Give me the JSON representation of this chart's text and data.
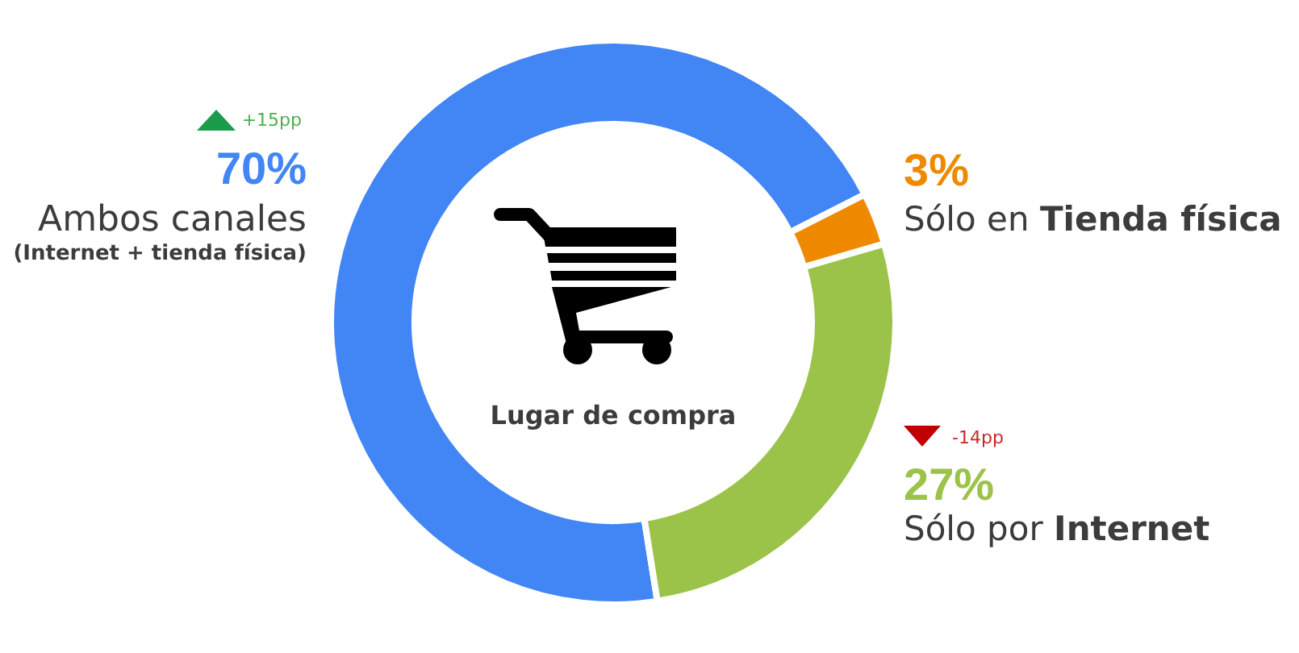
{
  "chart_data": {
    "type": "donut",
    "title": "Lugar de compra",
    "categories": [
      "Ambos canales (Internet + tienda física)",
      "Sólo en Tienda física",
      "Sólo por Internet"
    ],
    "values": [
      70,
      3,
      27
    ],
    "colors": [
      "#4285f4",
      "#ef8a00",
      "#9bc34a"
    ],
    "value_labels": [
      "70%",
      "3%",
      "27%"
    ],
    "annotations": [
      "+15pp",
      "-14pp"
    ]
  }
}
